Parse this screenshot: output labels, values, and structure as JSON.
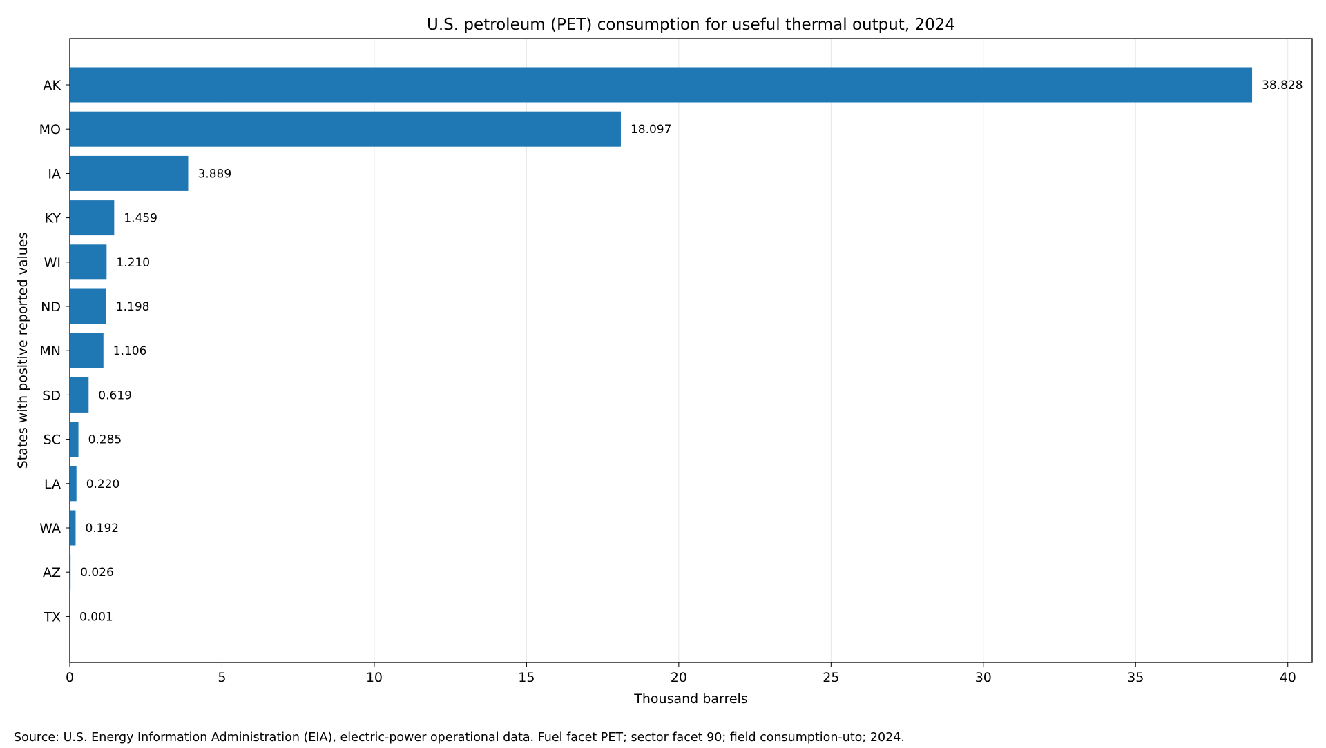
{
  "chart_data": {
    "type": "bar",
    "orientation": "horizontal",
    "title": "U.S. petroleum (PET) consumption for useful thermal output, 2024",
    "xlabel": "Thousand barrels",
    "ylabel": "States with positive reported values",
    "categories": [
      "AK",
      "MO",
      "IA",
      "KY",
      "WI",
      "ND",
      "MN",
      "SD",
      "SC",
      "LA",
      "WA",
      "AZ",
      "TX"
    ],
    "values": [
      38.828,
      18.097,
      3.889,
      1.459,
      1.21,
      1.198,
      1.106,
      0.619,
      0.285,
      0.22,
      0.192,
      0.026,
      0.001
    ],
    "value_labels": [
      "38.828",
      "18.097",
      "3.889",
      "1.459",
      "1.210",
      "1.198",
      "1.106",
      "0.619",
      "0.285",
      "0.220",
      "0.192",
      "0.026",
      "0.001"
    ],
    "xlim": [
      0,
      40.8
    ],
    "xticks": [
      0,
      5,
      10,
      15,
      20,
      25,
      30,
      35,
      40
    ],
    "xtick_labels": [
      "0",
      "5",
      "10",
      "15",
      "20",
      "25",
      "30",
      "35",
      "40"
    ],
    "grid": "x",
    "legend": "none",
    "bar_color": "#1f77b4",
    "source_note": "Source: U.S. Energy Information Administration (EIA), electric-power operational data. Fuel facet PET; sector facet 90; field consumption-uto; 2024."
  }
}
